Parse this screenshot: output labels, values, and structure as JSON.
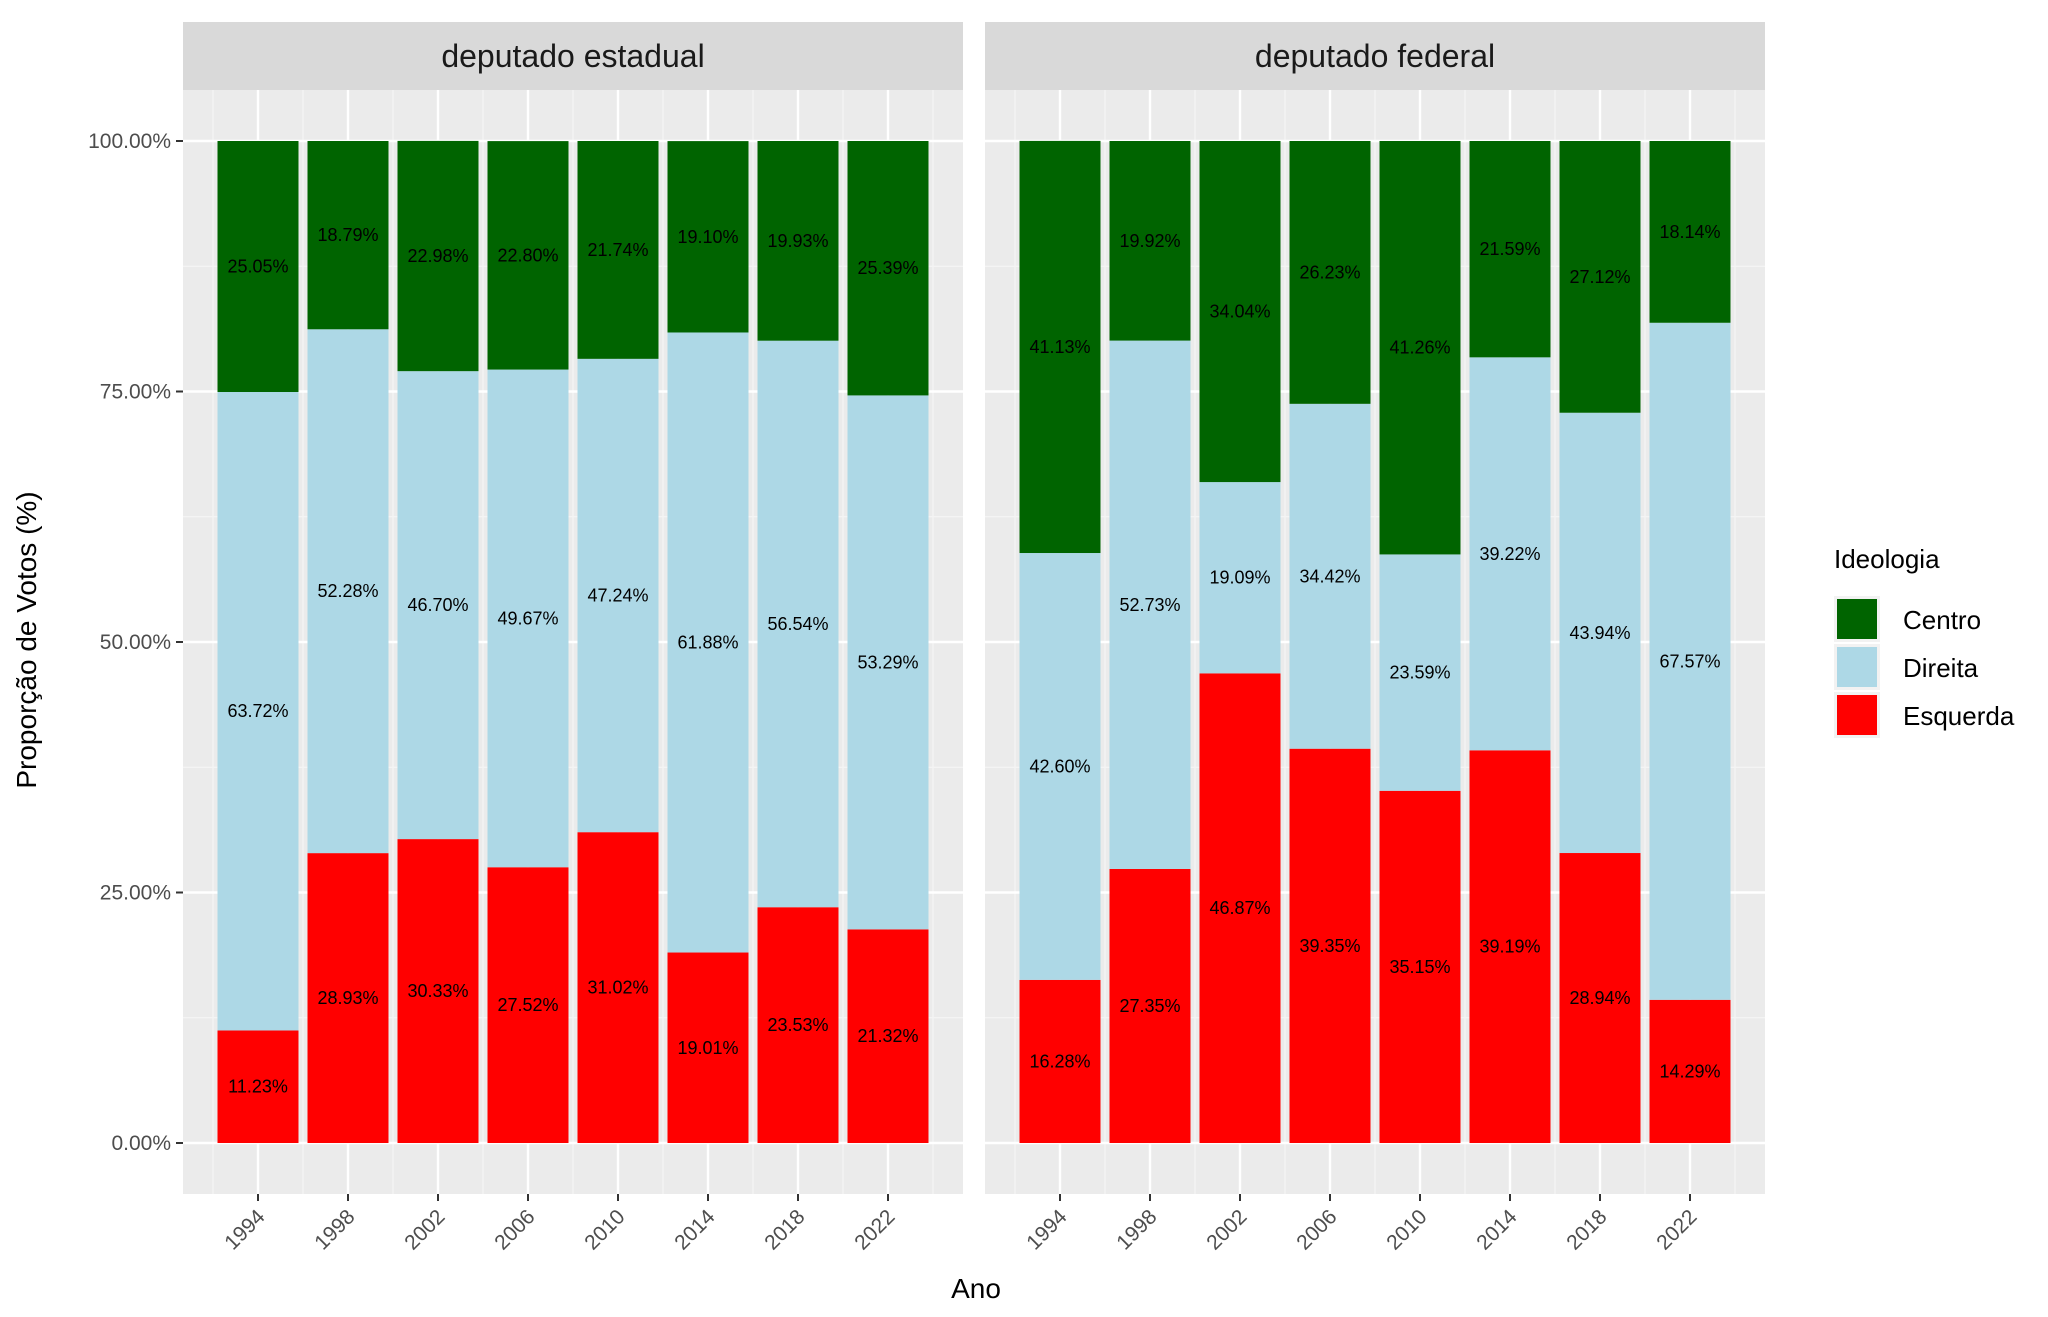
{
  "chart_data": {
    "type": "bar",
    "stacked": true,
    "ylabel": "Proporção de Votos (%)",
    "xlabel": "Ano",
    "ylim": [
      0,
      100
    ],
    "y_ticks": [
      "0.00%",
      "25.00%",
      "50.00%",
      "75.00%",
      "100.00%"
    ],
    "categories": [
      "1994",
      "1998",
      "2002",
      "2006",
      "2010",
      "2014",
      "2018",
      "2022"
    ],
    "legend": {
      "title": "Ideologia",
      "position": "right",
      "items": [
        {
          "name": "Centro",
          "color": "#006400"
        },
        {
          "name": "Direita",
          "color": "#ADD8E6"
        },
        {
          "name": "Esquerda",
          "color": "#FF0000"
        }
      ]
    },
    "panels": [
      {
        "title": "deputado estadual",
        "series": [
          {
            "name": "Esquerda",
            "values": [
              11.23,
              28.93,
              30.33,
              27.52,
              31.02,
              19.01,
              23.53,
              21.32
            ],
            "labels": [
              "11.23%",
              "28.93%",
              "30.33%",
              "27.52%",
              "31.02%",
              "19.01%",
              "23.53%",
              "21.32%"
            ]
          },
          {
            "name": "Direita",
            "values": [
              63.72,
              52.28,
              46.7,
              49.67,
              47.24,
              61.88,
              56.54,
              53.29
            ],
            "labels": [
              "63.72%",
              "52.28%",
              "46.70%",
              "49.67%",
              "47.24%",
              "61.88%",
              "56.54%",
              "53.29%"
            ]
          },
          {
            "name": "Centro",
            "values": [
              25.05,
              18.79,
              22.98,
              22.8,
              21.74,
              19.1,
              19.93,
              25.39
            ],
            "labels": [
              "25.05%",
              "18.79%",
              "22.98%",
              "22.80%",
              "21.74%",
              "19.10%",
              "19.93%",
              "25.39%"
            ]
          }
        ]
      },
      {
        "title": "deputado federal",
        "series": [
          {
            "name": "Esquerda",
            "values": [
              16.28,
              27.35,
              46.87,
              39.35,
              35.15,
              39.19,
              28.94,
              14.29
            ],
            "labels": [
              "16.28%",
              "27.35%",
              "46.87%",
              "39.35%",
              "35.15%",
              "39.19%",
              "28.94%",
              "14.29%"
            ]
          },
          {
            "name": "Direita",
            "values": [
              42.6,
              52.73,
              19.09,
              34.42,
              23.59,
              39.22,
              43.94,
              67.57
            ],
            "labels": [
              "42.60%",
              "52.73%",
              "19.09%",
              "34.42%",
              "23.59%",
              "39.22%",
              "43.94%",
              "67.57%"
            ]
          },
          {
            "name": "Centro",
            "values": [
              41.13,
              19.92,
              34.04,
              26.23,
              41.26,
              21.59,
              27.12,
              18.14
            ],
            "labels": [
              "41.13%",
              "19.92%",
              "34.04%",
              "26.23%",
              "41.26%",
              "21.59%",
              "27.12%",
              "18.14%"
            ]
          }
        ]
      }
    ]
  }
}
